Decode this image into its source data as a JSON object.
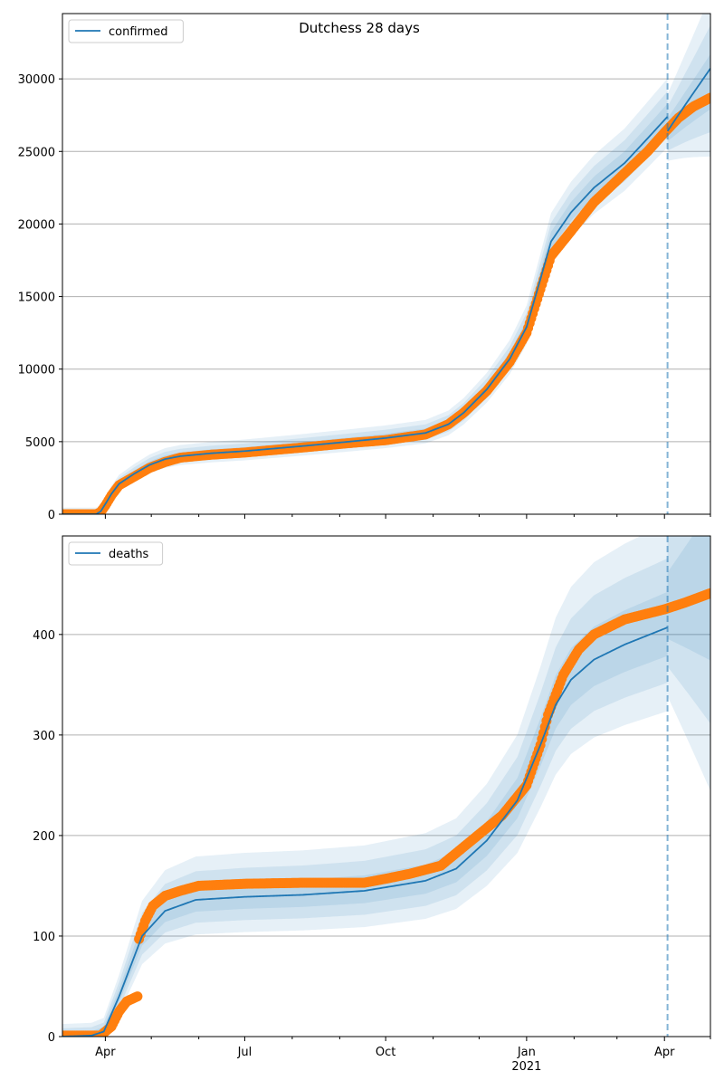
{
  "chart_data": {
    "title": "Dutchess 28 days",
    "type": "line",
    "x_unit": "days since 2020-03-01",
    "xlim": [
      3,
      426
    ],
    "x_ticks": [
      {
        "day": 31,
        "label": "Apr"
      },
      {
        "day": 122,
        "label": "Jul"
      },
      {
        "day": 214,
        "label": "Oct"
      },
      {
        "day": 306,
        "label": "Jan",
        "sublabel": "2021"
      },
      {
        "day": 396,
        "label": "Apr"
      }
    ],
    "minor_ticks": [
      61,
      92,
      153,
      184,
      245,
      275,
      337,
      365,
      426
    ],
    "forecast_start_day": 398,
    "colors": {
      "line": "#1f77b4",
      "observed": "#ff7f0e",
      "band": "#1f77b4"
    },
    "panels": [
      {
        "name": "confirmed",
        "legend": "confirmed",
        "ylim": [
          0,
          34500
        ],
        "yticks": [
          0,
          5000,
          10000,
          15000,
          20000,
          25000,
          30000
        ],
        "observed": [
          [
            3,
            0
          ],
          [
            25,
            0
          ],
          [
            28,
            150
          ],
          [
            31,
            600
          ],
          [
            35,
            1300
          ],
          [
            40,
            2000
          ],
          [
            50,
            2600
          ],
          [
            60,
            3200
          ],
          [
            70,
            3600
          ],
          [
            80,
            3900
          ],
          [
            100,
            4100
          ],
          [
            122,
            4250
          ],
          [
            160,
            4600
          ],
          [
            190,
            4900
          ],
          [
            214,
            5100
          ],
          [
            240,
            5500
          ],
          [
            255,
            6200
          ],
          [
            265,
            7000
          ],
          [
            280,
            8500
          ],
          [
            295,
            10500
          ],
          [
            306,
            12500
          ],
          [
            315,
            15500
          ],
          [
            322,
            17800
          ],
          [
            335,
            19500
          ],
          [
            350,
            21500
          ],
          [
            370,
            23500
          ],
          [
            385,
            25000
          ],
          [
            396,
            26300
          ],
          [
            405,
            27300
          ],
          [
            415,
            28100
          ],
          [
            426,
            28700
          ]
        ],
        "model": [
          [
            3,
            0
          ],
          [
            25,
            0
          ],
          [
            28,
            200
          ],
          [
            31,
            700
          ],
          [
            35,
            1400
          ],
          [
            40,
            2100
          ],
          [
            50,
            2800
          ],
          [
            60,
            3400
          ],
          [
            70,
            3800
          ],
          [
            80,
            4000
          ],
          [
            100,
            4200
          ],
          [
            122,
            4350
          ],
          [
            160,
            4700
          ],
          [
            190,
            5000
          ],
          [
            214,
            5250
          ],
          [
            240,
            5600
          ],
          [
            255,
            6200
          ],
          [
            265,
            7000
          ],
          [
            280,
            8600
          ],
          [
            295,
            10700
          ],
          [
            306,
            12900
          ],
          [
            315,
            16200
          ],
          [
            322,
            18800
          ],
          [
            335,
            20800
          ],
          [
            350,
            22500
          ],
          [
            370,
            24200
          ],
          [
            385,
            25900
          ],
          [
            398,
            27400
          ]
        ],
        "forecast": [
          [
            398,
            26400
          ],
          [
            410,
            27800
          ],
          [
            426,
            29600
          ]
        ]
      },
      {
        "name": "deaths",
        "legend": "deaths",
        "ylim": [
          0,
          498
        ],
        "yticks": [
          0,
          100,
          200,
          300,
          400
        ],
        "observed": [
          [
            3,
            1
          ],
          [
            28,
            1
          ],
          [
            31,
            5
          ],
          [
            35,
            10
          ],
          [
            40,
            25
          ],
          [
            45,
            35
          ],
          [
            52,
            40
          ],
          [
            53,
            97
          ],
          [
            57,
            115
          ],
          [
            62,
            130
          ],
          [
            70,
            140
          ],
          [
            80,
            145
          ],
          [
            92,
            150
          ],
          [
            122,
            152
          ],
          [
            160,
            153
          ],
          [
            200,
            153
          ],
          [
            214,
            157
          ],
          [
            230,
            162
          ],
          [
            250,
            170
          ],
          [
            270,
            195
          ],
          [
            290,
            220
          ],
          [
            306,
            250
          ],
          [
            315,
            290
          ],
          [
            320,
            320
          ],
          [
            330,
            360
          ],
          [
            340,
            385
          ],
          [
            350,
            400
          ],
          [
            370,
            415
          ],
          [
            396,
            425
          ],
          [
            410,
            432
          ],
          [
            426,
            441
          ]
        ],
        "model": [
          [
            3,
            0
          ],
          [
            22,
            1
          ],
          [
            30,
            5
          ],
          [
            40,
            40
          ],
          [
            55,
            100
          ],
          [
            70,
            125
          ],
          [
            90,
            136
          ],
          [
            122,
            139
          ],
          [
            160,
            141
          ],
          [
            200,
            145
          ],
          [
            240,
            155
          ],
          [
            260,
            167
          ],
          [
            280,
            195
          ],
          [
            300,
            235
          ],
          [
            315,
            290
          ],
          [
            325,
            330
          ],
          [
            335,
            355
          ],
          [
            350,
            375
          ],
          [
            370,
            390
          ],
          [
            398,
            407
          ]
        ],
        "forecast": [
          [
            398,
            425
          ],
          [
            426,
            441
          ]
        ]
      }
    ]
  }
}
